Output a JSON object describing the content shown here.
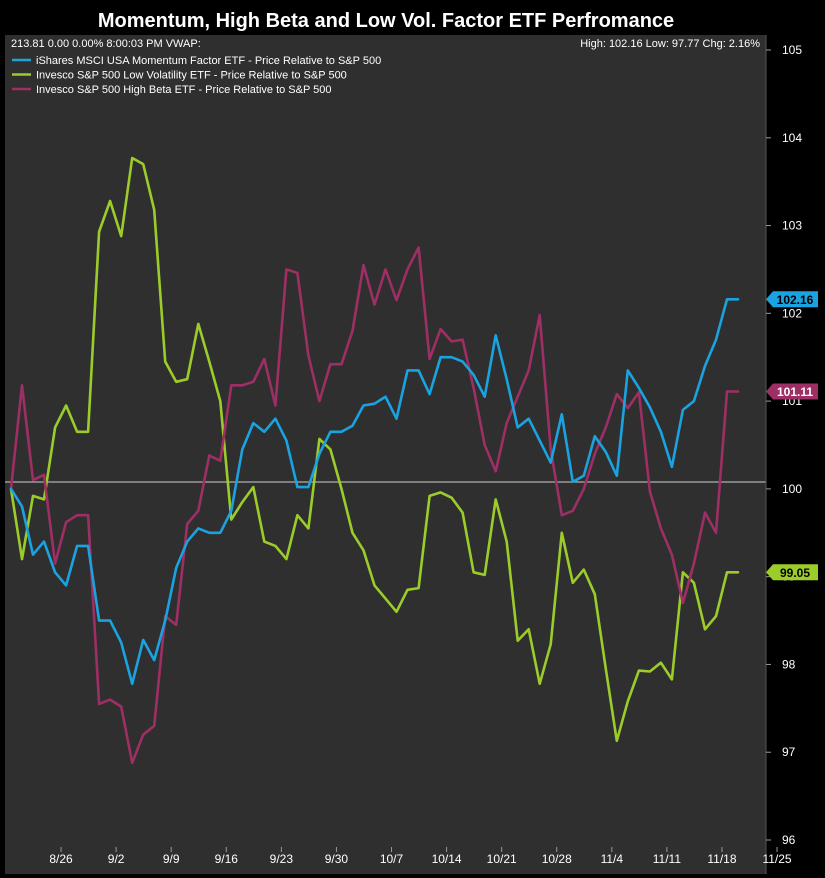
{
  "chart_data": {
    "type": "line",
    "title": "Momentum, High Beta and Low Vol. Factor ETF Perfromance",
    "info_left": "213.81 0.00 0.00% 8:00:03 PM VWAP:",
    "info_right": "High: 102.16 Low: 97.77 Chg: 2.16%",
    "x_ticks": [
      "8/26",
      "9/2",
      "9/9",
      "9/16",
      "9/23",
      "9/30",
      "10/7",
      "10/14",
      "10/21",
      "10/28",
      "11/4",
      "11/11",
      "11/18",
      "11/25"
    ],
    "y_ticks": [
      "105",
      "104",
      "103",
      "102",
      "101",
      "100",
      "99",
      "98",
      "97",
      "96"
    ],
    "ylim": [
      96,
      105
    ],
    "reference_line": 100,
    "grid": false,
    "legend_position": "top-left",
    "series": [
      {
        "name": "iShares MSCI USA Momentum Factor ETF - Price Relative to S&P 500",
        "color": "#1aa3e0",
        "last_label": "102.16",
        "values": [
          100,
          99.8,
          99.25,
          99.4,
          99.05,
          98.9,
          99.35,
          99.35,
          98.5,
          98.5,
          98.25,
          97.78,
          98.28,
          98.05,
          98.5,
          99.1,
          99.4,
          99.55,
          99.5,
          99.5,
          99.75,
          100.45,
          100.75,
          100.65,
          100.8,
          100.55,
          100.02,
          100.02,
          100.4,
          100.65,
          100.65,
          100.72,
          100.95,
          100.97,
          101.05,
          100.8,
          101.35,
          101.35,
          101.08,
          101.5,
          101.5,
          101.45,
          101.3,
          101.05,
          101.75,
          101.25,
          100.7,
          100.8,
          100.55,
          100.3,
          100.85,
          100.08,
          100.15,
          100.6,
          100.42,
          100.15,
          101.35,
          101.15,
          100.93,
          100.65,
          100.25,
          100.9,
          101.0,
          101.4,
          101.7,
          102.16,
          102.16
        ]
      },
      {
        "name": "Invesco S&P 500 Low Volatility ETF - Price Relative to S&P 500",
        "color": "#9ccc2a",
        "last_label": "99.05",
        "values": [
          100,
          99.2,
          99.92,
          99.88,
          100.7,
          100.95,
          100.65,
          100.65,
          102.93,
          103.28,
          102.88,
          103.77,
          103.7,
          103.18,
          101.45,
          101.22,
          101.25,
          101.88,
          101.45,
          101.0,
          99.65,
          99.85,
          100.02,
          99.4,
          99.35,
          99.2,
          99.7,
          99.55,
          100.57,
          100.45,
          100.0,
          99.5,
          99.3,
          98.9,
          98.75,
          98.6,
          98.85,
          98.87,
          99.92,
          99.96,
          99.9,
          99.73,
          99.05,
          99.02,
          99.88,
          99.4,
          98.27,
          98.4,
          97.78,
          98.23,
          99.5,
          98.93,
          99.08,
          98.8,
          97.95,
          97.13,
          97.58,
          97.93,
          97.92,
          98.02,
          97.83,
          99.05,
          98.93,
          98.4,
          98.55,
          99.05,
          99.05
        ]
      },
      {
        "name": "Invesco S&P 500 High Beta ETF - Price Relative to S&P 500",
        "color": "#9e2f64",
        "last_label": "101.11",
        "values": [
          100,
          101.18,
          100.1,
          100.16,
          99.15,
          99.62,
          99.7,
          99.7,
          97.55,
          97.6,
          97.52,
          96.88,
          97.2,
          97.3,
          98.55,
          98.45,
          99.6,
          99.75,
          100.38,
          100.32,
          101.18,
          101.18,
          101.22,
          101.48,
          100.95,
          102.5,
          102.46,
          101.52,
          101.0,
          101.42,
          101.42,
          101.8,
          102.55,
          102.1,
          102.5,
          102.15,
          102.5,
          102.75,
          101.48,
          101.82,
          101.68,
          101.7,
          101.15,
          100.5,
          100.2,
          100.75,
          101.05,
          101.35,
          101.98,
          100.45,
          99.7,
          99.75,
          100.0,
          100.4,
          100.7,
          101.08,
          100.92,
          101.1,
          99.97,
          99.55,
          99.25,
          98.7,
          99.15,
          99.73,
          99.5,
          101.11,
          101.11
        ]
      }
    ]
  }
}
